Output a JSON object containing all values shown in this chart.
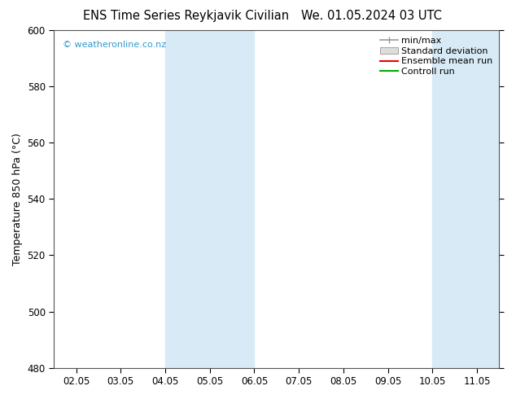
{
  "title_left": "ENS Time Series Reykjavik Civilian",
  "title_right": "We. 01.05.2024 03 UTC",
  "ylabel": "Temperature 850 hPa (°C)",
  "watermark": "© weatheronline.co.nz",
  "watermark_color": "#3399cc",
  "ylim": [
    480,
    600
  ],
  "yticks": [
    480,
    500,
    520,
    540,
    560,
    580,
    600
  ],
  "xtick_labels": [
    "02.05",
    "03.05",
    "04.05",
    "05.05",
    "06.05",
    "07.05",
    "08.05",
    "09.05",
    "10.05",
    "11.05"
  ],
  "shaded_bands": [
    {
      "xstart": 2,
      "xend": 4,
      "color": "#d8eaf5"
    },
    {
      "xstart": 8,
      "xend": 9.5,
      "color": "#d8eaf5"
    }
  ],
  "legend_entries": [
    {
      "label": "min/max",
      "color": "#aaaaaa",
      "type": "hline"
    },
    {
      "label": "Standard deviation",
      "color": "#cccccc",
      "type": "box"
    },
    {
      "label": "Ensemble mean run",
      "color": "#ee0000",
      "type": "line"
    },
    {
      "label": "Controll run",
      "color": "#00aa00",
      "type": "line"
    }
  ],
  "background_color": "#ffffff",
  "title_fontsize": 10.5,
  "ylabel_fontsize": 9,
  "tick_fontsize": 8.5,
  "watermark_fontsize": 8,
  "legend_fontsize": 8
}
